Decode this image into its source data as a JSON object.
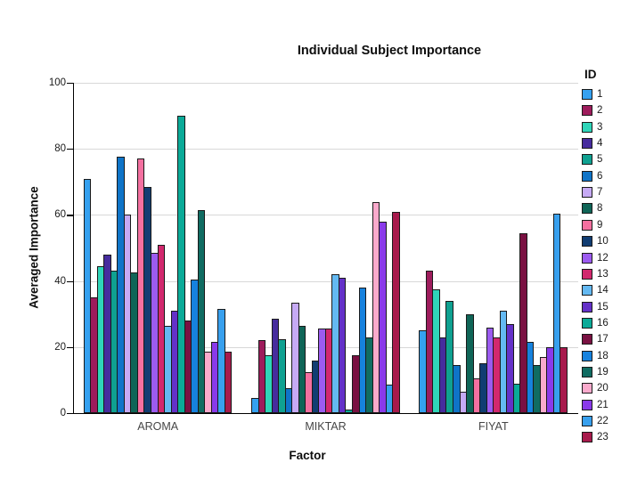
{
  "title": "Individual Subject Importance",
  "chart_data": {
    "type": "bar",
    "title": "Individual Subject Importance",
    "xlabel": "Factor",
    "ylabel": "Averaged Importance",
    "ylim": [
      0,
      100
    ],
    "yticks": [
      0,
      20,
      40,
      60,
      80,
      100
    ],
    "grid": true,
    "legend_title": "ID",
    "legend_position": "right",
    "categories": [
      "AROMA",
      "MIKTAR",
      "FIYAT"
    ],
    "series": [
      {
        "name": "1",
        "color": "#35A1F0",
        "values": [
          71,
          4.5,
          25
        ]
      },
      {
        "name": "2",
        "color": "#9E1C5C",
        "values": [
          35,
          22,
          43
        ]
      },
      {
        "name": "3",
        "color": "#2FD5B9",
        "values": [
          44.5,
          17.5,
          37.5
        ]
      },
      {
        "name": "4",
        "color": "#462C9E",
        "values": [
          48,
          28.5,
          23
        ]
      },
      {
        "name": "5",
        "color": "#0FA191",
        "values": [
          43,
          22.5,
          34
        ]
      },
      {
        "name": "6",
        "color": "#0F74C8",
        "values": [
          77.5,
          7.5,
          14.5
        ]
      },
      {
        "name": "7",
        "color": "#C6AAF5",
        "values": [
          60,
          33.5,
          6.5
        ]
      },
      {
        "name": "8",
        "color": "#0F6557",
        "values": [
          42.5,
          26.5,
          30
        ]
      },
      {
        "name": "9",
        "color": "#F470A0",
        "values": [
          77,
          12.5,
          10.5
        ]
      },
      {
        "name": "10",
        "color": "#113D72",
        "values": [
          68.5,
          16,
          15
        ]
      },
      {
        "name": "12",
        "color": "#9C5BF0",
        "values": [
          48.5,
          25.5,
          26
        ]
      },
      {
        "name": "13",
        "color": "#D2286E",
        "values": [
          51,
          25.5,
          23
        ]
      },
      {
        "name": "14",
        "color": "#64B9F2",
        "values": [
          26.5,
          42,
          31
        ]
      },
      {
        "name": "15",
        "color": "#6431C8",
        "values": [
          31,
          41,
          27
        ]
      },
      {
        "name": "16",
        "color": "#0BAA98",
        "values": [
          90,
          1,
          9
        ]
      },
      {
        "name": "17",
        "color": "#7A1142",
        "values": [
          28,
          17.5,
          54.5
        ]
      },
      {
        "name": "18",
        "color": "#1682DE",
        "values": [
          40.5,
          38,
          21.5
        ]
      },
      {
        "name": "19",
        "color": "#106C62",
        "values": [
          61.5,
          23,
          14.5
        ]
      },
      {
        "name": "20",
        "color": "#FAAACC",
        "values": [
          18.5,
          64,
          17
        ]
      },
      {
        "name": "21",
        "color": "#8A3AEA",
        "values": [
          21.5,
          58,
          20
        ]
      },
      {
        "name": "22",
        "color": "#38A0EE",
        "values": [
          31.5,
          8.5,
          60.5
        ]
      },
      {
        "name": "23",
        "color": "#A81A4C",
        "values": [
          18.5,
          61,
          20
        ]
      }
    ]
  }
}
